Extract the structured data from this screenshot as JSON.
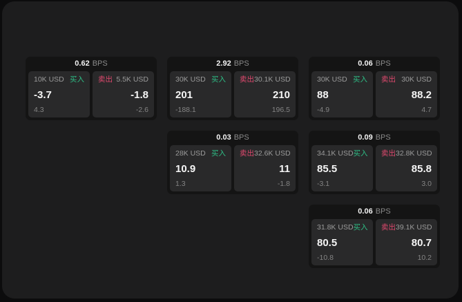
{
  "labels": {
    "buy": "买入",
    "sell": "卖出",
    "bps_unit": "BPS"
  },
  "colors": {
    "buy_green": "#2ebd85",
    "sell_red": "#e0496e",
    "panel_bg": "#1d1d1e",
    "card_bg": "#141414",
    "tile_bg": "#29292a"
  },
  "cards": [
    {
      "bps": "0.62",
      "buy": {
        "size": "10K USD",
        "price": "-3.7",
        "delta": "4.3"
      },
      "sell": {
        "size": "5.5K USD",
        "price": "-1.8",
        "delta": "-2.6"
      }
    },
    {
      "bps": "2.92",
      "buy": {
        "size": "30K USD",
        "price": "201",
        "delta": "-188.1"
      },
      "sell": {
        "size": "30.1K USD",
        "price": "210",
        "delta": "196.5"
      }
    },
    {
      "bps": "0.06",
      "buy": {
        "size": "30K USD",
        "price": "88",
        "delta": "-4.9"
      },
      "sell": {
        "size": "30K USD",
        "price": "88.2",
        "delta": "4.7"
      }
    },
    {
      "bps": "0.03",
      "buy": {
        "size": "28K USD",
        "price": "10.9",
        "delta": "1.3"
      },
      "sell": {
        "size": "32.6K USD",
        "price": "11",
        "delta": "-1.8"
      }
    },
    {
      "bps": "0.09",
      "buy": {
        "size": "34.1K USD",
        "price": "85.5",
        "delta": "-3.1"
      },
      "sell": {
        "size": "32.8K USD",
        "price": "85.8",
        "delta": "3.0"
      }
    },
    {
      "bps": "0.06",
      "buy": {
        "size": "31.8K USD",
        "price": "80.5",
        "delta": "-10.8"
      },
      "sell": {
        "size": "39.1K USD",
        "price": "80.7",
        "delta": "10.2"
      }
    }
  ]
}
